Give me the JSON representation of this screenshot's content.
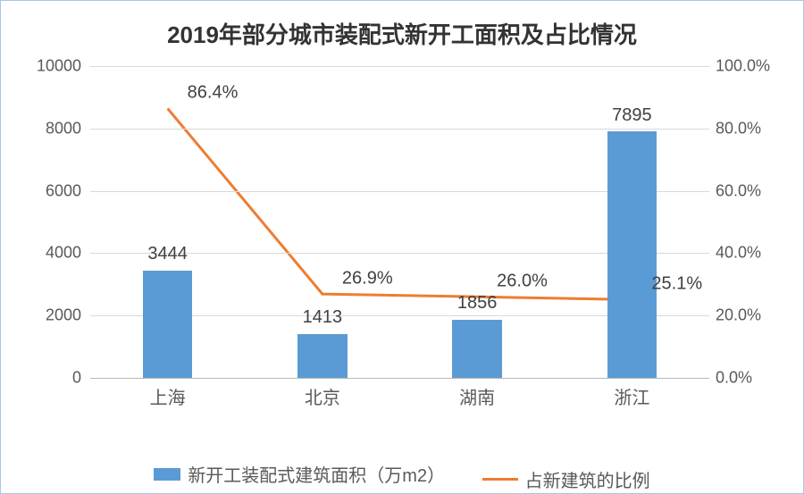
{
  "chart": {
    "type": "bar+line",
    "title": "2019年部分城市装配式新开工面积及占比情况",
    "title_fontsize": 26,
    "title_color": "#333333",
    "background_color": "#ffffff",
    "border_color": "#a9c5e8",
    "grid_color": "#d9d9d9",
    "tick_color": "#595959",
    "label_fontsize": 18,
    "categories": [
      "上海",
      "北京",
      "湖南",
      "浙江"
    ],
    "bars": {
      "label": "新开工装配式建筑面积（万m2）",
      "values": [
        3444,
        1413,
        1856,
        7895
      ],
      "color": "#5b9bd5",
      "bar_width_frac": 0.32,
      "data_label_fontsize": 20,
      "data_label_color": "#404040"
    },
    "line": {
      "label": "占新建筑的比例",
      "values_pct": [
        86.4,
        26.9,
        26.0,
        25.1
      ],
      "color": "#ed7d31",
      "line_width": 3,
      "data_label_fontsize": 20,
      "data_label_color": "#404040"
    },
    "y_left": {
      "min": 0,
      "max": 10000,
      "step": 2000
    },
    "y_right": {
      "min": 0,
      "max": 100,
      "step": 20,
      "suffix": "%",
      "decimals": 1
    }
  }
}
